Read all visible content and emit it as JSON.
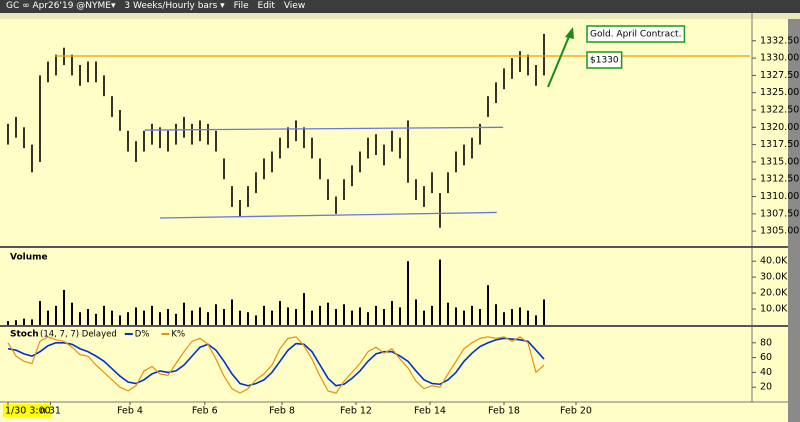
{
  "toolbar": {
    "symbol": "GC ∞ Apr26'19 @NYME▾",
    "interval": "3 Weeks/Hourly bars ▾",
    "menu": [
      "File",
      "Edit",
      "View"
    ]
  },
  "chart_data": [
    {
      "type": "range_bar",
      "xlim": [
        -1,
        93
      ],
      "ylim": [
        1303,
        1335.5
      ],
      "high": [
        1320.5,
        1321.5,
        1320,
        1317.5,
        1327.5,
        1329.5,
        1330.5,
        1331.5,
        1330.5,
        1329,
        1329.5,
        1329.5,
        1327.5,
        1324.5,
        1322.5,
        1319.5,
        1318,
        1319.5,
        1320.5,
        1320,
        1319.5,
        1320.5,
        1321.5,
        1320.5,
        1321,
        1320.5,
        1319.5,
        1315.5,
        1311.5,
        1309.5,
        1311.5,
        1313.5,
        1315.5,
        1316.5,
        1318.5,
        1320,
        1321,
        1320,
        1318.5,
        1315.5,
        1312.5,
        1310,
        1312.5,
        1314.5,
        1316.5,
        1318.5,
        1319,
        1317.5,
        1319.5,
        1318.5,
        1321,
        1312.5,
        1311.5,
        1313.5,
        1310.5,
        1313.5,
        1316.5,
        1317.5,
        1318.5,
        1320.5,
        1324.5,
        1326.5,
        1328.5,
        1330,
        1331,
        1330.5,
        1329,
        1333.5
      ],
      "low": [
        1317.5,
        1318.5,
        1317,
        1313.5,
        1315,
        1326.5,
        1327.5,
        1329,
        1327.5,
        1326,
        1326.5,
        1326.5,
        1324.5,
        1321.5,
        1319.5,
        1316.5,
        1315,
        1316.5,
        1317.5,
        1317,
        1316.5,
        1317.5,
        1318.5,
        1317.5,
        1318,
        1317.5,
        1316.5,
        1312.5,
        1308.5,
        1307,
        1308.5,
        1310.5,
        1312.5,
        1313.5,
        1315.5,
        1317,
        1318,
        1317,
        1315.5,
        1312.5,
        1309.5,
        1307.5,
        1309.5,
        1311.5,
        1313.5,
        1315.5,
        1316,
        1314.5,
        1316.5,
        1315.5,
        1312,
        1309.5,
        1308.5,
        1310.5,
        1305.5,
        1310.5,
        1313.5,
        1314.5,
        1315.5,
        1317.5,
        1321.5,
        1323.5,
        1325.5,
        1327,
        1328,
        1327.5,
        1326,
        1327.5
      ],
      "color": "#000000",
      "yticks": [
        {
          "value": 1305,
          "label": "1305.00"
        },
        {
          "value": 1307.5,
          "label": "1307.50"
        },
        {
          "value": 1310,
          "label": "1310.00"
        },
        {
          "value": 1312.5,
          "label": "1312.50"
        },
        {
          "value": 1315,
          "label": "1315.00"
        },
        {
          "value": 1317.5,
          "label": "1317.50"
        },
        {
          "value": 1320,
          "label": "1320.00"
        },
        {
          "value": 1322.5,
          "label": "1322.50"
        },
        {
          "value": 1325,
          "label": "1325.00"
        },
        {
          "value": 1327.5,
          "label": "1327.50"
        },
        {
          "value": 1330,
          "label": "1330.00"
        },
        {
          "value": 1332.5,
          "label": "1332.50"
        }
      ],
      "xticks": [
        {
          "value": 0,
          "label": "1/30 3:00"
        },
        {
          "value": 5.3,
          "label": "n 31"
        },
        {
          "value": 15.25,
          "label": "Feb 4"
        },
        {
          "value": 24.6,
          "label": "Feb 6"
        },
        {
          "value": 34.25,
          "label": "Feb 8"
        },
        {
          "value": 43.5,
          "label": "Feb 12"
        },
        {
          "value": 52.75,
          "label": "Feb 14"
        },
        {
          "value": 62,
          "label": "Feb 18"
        },
        {
          "value": 71,
          "label": "Feb 20"
        }
      ],
      "trendlines": [
        {
          "color": "#f0a000",
          "x": [
            5.9,
            92.75
          ],
          "y": [
            1330.3,
            1330.3
          ]
        },
        {
          "color": "#6a78e0",
          "x": [
            17.1,
            61.9
          ],
          "y": [
            1319.6,
            1320
          ]
        },
        {
          "color": "#6a78e0",
          "x": [
            19,
            61.1
          ],
          "y": [
            1306.9,
            1307.7
          ]
        }
      ],
      "annotations": [
        "Gold. April Contract.",
        "$1330"
      ]
    },
    {
      "type": "bar",
      "title": "Volume",
      "ylim": [
        0,
        47000
      ],
      "color": "#000000",
      "values": [
        2500,
        3000,
        4000,
        3500,
        15000,
        9000,
        12000,
        22000,
        14000,
        8000,
        10000,
        7000,
        12000,
        9000,
        6000,
        8000,
        11000,
        9000,
        12000,
        8000,
        10000,
        7000,
        14000,
        9000,
        11000,
        8000,
        13000,
        10000,
        16000,
        9000,
        8000,
        6000,
        12000,
        9000,
        15000,
        11000,
        10000,
        20000,
        9000,
        12000,
        14000,
        10000,
        13000,
        9000,
        11000,
        8000,
        12000,
        10000,
        15000,
        11000,
        40000,
        16000,
        9000,
        12000,
        41000,
        14000,
        11000,
        9000,
        12000,
        10000,
        25000,
        13000,
        8000,
        10000,
        11000,
        9000,
        6000,
        16000
      ],
      "yticks": [
        {
          "value": 10000,
          "label": "10.0K"
        },
        {
          "value": 20000,
          "label": "20.0K"
        },
        {
          "value": 30000,
          "label": "30.0K"
        },
        {
          "value": 40000,
          "label": "40.0K"
        }
      ]
    },
    {
      "type": "line",
      "title": "Stoch",
      "subtitle": "(14, 7, 7) Delayed",
      "ylim": [
        0,
        100
      ],
      "yticks": [
        20,
        40,
        60,
        80
      ],
      "series": [
        {
          "name": "D%",
          "color": "#0030d0",
          "values": [
            72,
            70,
            65,
            62,
            68,
            76,
            80,
            80,
            78,
            72,
            68,
            62,
            55,
            45,
            35,
            27,
            25,
            30,
            38,
            42,
            40,
            42,
            50,
            62,
            74,
            78,
            70,
            55,
            38,
            25,
            22,
            25,
            30,
            40,
            55,
            70,
            79,
            78,
            68,
            50,
            32,
            22,
            24,
            32,
            42,
            55,
            65,
            68,
            68,
            62,
            55,
            42,
            30,
            25,
            24,
            30,
            40,
            55,
            66,
            75,
            80,
            84,
            86,
            85,
            84,
            82,
            70,
            58
          ]
        },
        {
          "name": "K%",
          "color": "#e89010",
          "values": [
            80,
            62,
            55,
            52,
            82,
            88,
            84,
            82,
            74,
            64,
            62,
            50,
            40,
            30,
            20,
            15,
            22,
            42,
            48,
            38,
            36,
            52,
            68,
            82,
            86,
            78,
            58,
            35,
            18,
            12,
            18,
            30,
            38,
            50,
            72,
            86,
            88,
            76,
            58,
            35,
            15,
            12,
            28,
            40,
            52,
            68,
            74,
            66,
            72,
            58,
            46,
            28,
            18,
            22,
            20,
            38,
            55,
            72,
            80,
            86,
            88,
            86,
            88,
            82,
            88,
            80,
            40,
            50
          ]
        }
      ]
    }
  ]
}
